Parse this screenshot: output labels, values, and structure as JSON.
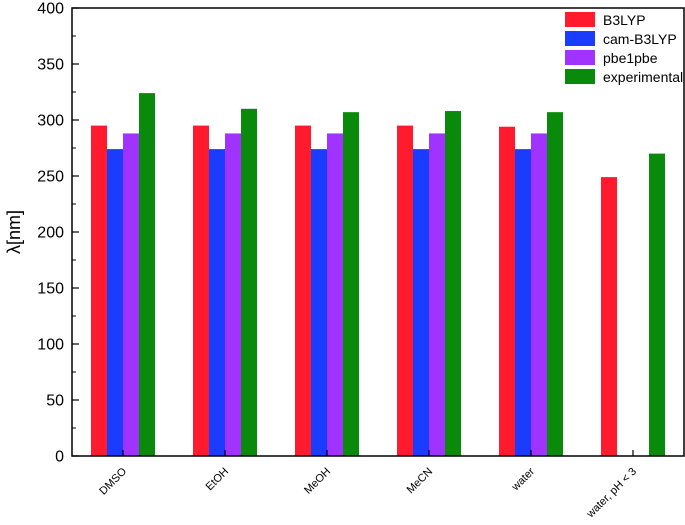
{
  "chart_data": {
    "type": "bar",
    "title": "",
    "xlabel": "",
    "ylabel": "λ[nm]",
    "ylim": [
      0,
      400
    ],
    "yticks": [
      0,
      50,
      100,
      150,
      200,
      250,
      300,
      350,
      400
    ],
    "categories": [
      "DMSO",
      "EtOH",
      "MeOH",
      "MeCN",
      "water",
      "water, pH < 3"
    ],
    "series": [
      {
        "name": "B3LYP",
        "color": "#ff1a2e",
        "values": [
          295,
          295,
          295,
          295,
          294,
          249
        ]
      },
      {
        "name": "cam-B3LYP",
        "color": "#1a3cff",
        "values": [
          274,
          274,
          274,
          274,
          274,
          null
        ]
      },
      {
        "name": "pbe1pbe",
        "color": "#a033ff",
        "values": [
          288,
          288,
          288,
          288,
          288,
          null
        ]
      },
      {
        "name": "experimental",
        "color": "#0a8a0a",
        "values": [
          324,
          310,
          307,
          308,
          307,
          270
        ]
      }
    ],
    "legend_position": "top-right",
    "grid": false
  }
}
